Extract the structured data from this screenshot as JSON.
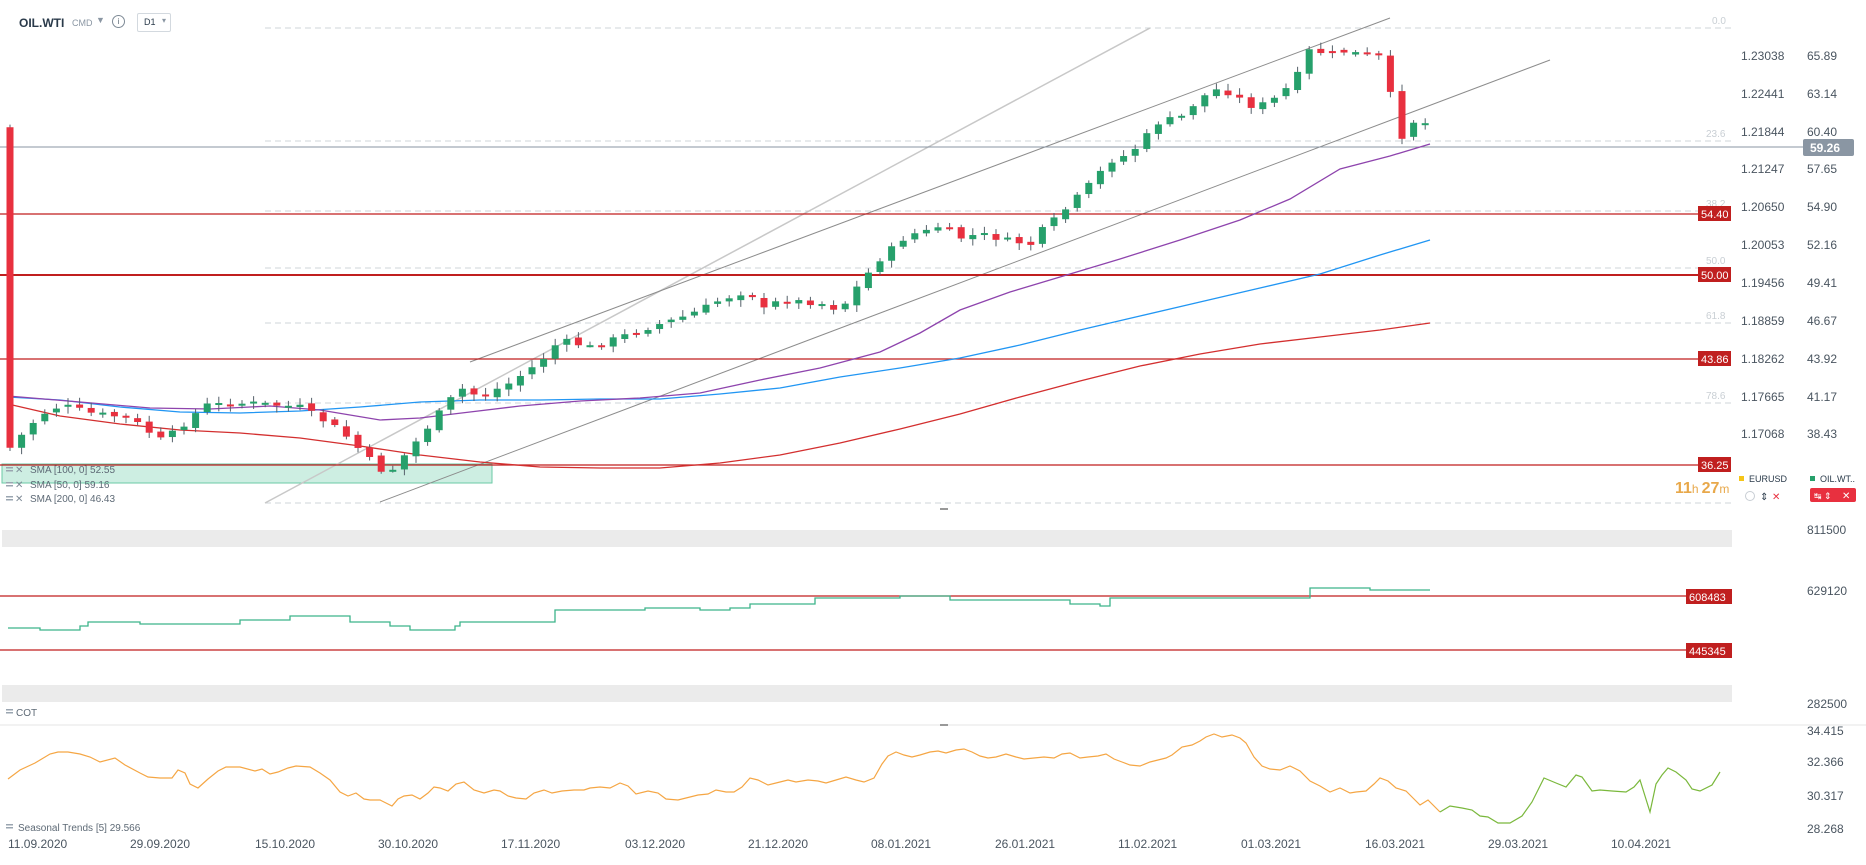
{
  "header": {
    "symbol": "OIL.WTI",
    "market": "CMD",
    "timeframe": "D1"
  },
  "colors": {
    "up": "#26a06b",
    "down": "#e8303f",
    "sma100": "#2196f3",
    "sma50": "#8e44ad",
    "sma200": "#d32f2f",
    "level": "#c01f1f",
    "cot": "#3cb48a",
    "seasonal_a": "#f5a644",
    "seasonal_b": "#7ab83c"
  },
  "price_axis": [
    "65.89",
    "63.14",
    "60.40",
    "57.65",
    "54.90",
    "52.16",
    "49.41",
    "46.67",
    "43.92",
    "41.17",
    "38.43"
  ],
  "eurusd_axis": [
    "1.23038",
    "1.22441",
    "1.21844",
    "1.21247",
    "1.20650",
    "1.20053",
    "1.19456",
    "1.18859",
    "1.18262",
    "1.17665",
    "1.17068"
  ],
  "fib_labels": [
    "0.0",
    "23.6",
    "38.2",
    "50.0",
    "61.8",
    "78.6"
  ],
  "current_price": "59.26",
  "levels": [
    "54.40",
    "50.00",
    "43.86",
    "36.25"
  ],
  "sma_legend": [
    "SMA [100, 0] 52.55",
    "SMA [50, 0] 59.16",
    "SMA [200, 0] 46.43"
  ],
  "countdown": {
    "hours": "11",
    "h": "h",
    "minutes": "27",
    "m": "m"
  },
  "compare_legend": [
    {
      "name": "EURUSD"
    },
    {
      "name": "OIL.WT.."
    }
  ],
  "cot": {
    "title": "COT",
    "axis": [
      "811500",
      "629120",
      "282500"
    ],
    "levels": [
      "608483",
      "445345"
    ]
  },
  "seasonal": {
    "label": "Seasonal  Trends [5]  29.566",
    "axis": [
      "34.415",
      "32.366",
      "30.317",
      "28.268"
    ]
  },
  "date_axis": [
    "11.09.2020",
    "29.09.2020",
    "15.10.2020",
    "30.10.2020",
    "17.11.2020",
    "03.12.2020",
    "21.12.2020",
    "08.01.2021",
    "26.01.2021",
    "11.02.2021",
    "01.03.2021",
    "16.03.2021",
    "29.03.2021",
    "10.04.2021"
  ]
}
